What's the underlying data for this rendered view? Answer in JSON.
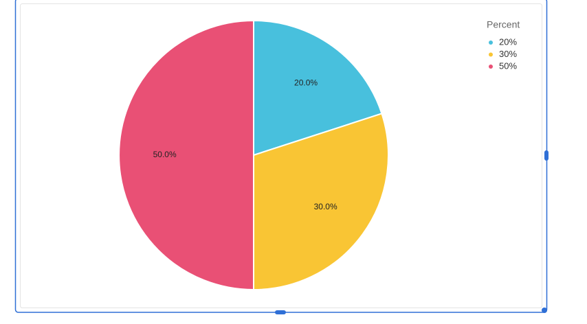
{
  "chart_data": {
    "type": "pie",
    "legend_title": "Percent",
    "categories": [
      "20%",
      "30%",
      "50%"
    ],
    "values": [
      20,
      30,
      50
    ],
    "value_labels": [
      "20.0%",
      "30.0%",
      "50.0%"
    ],
    "colors": [
      "#48c0dd",
      "#f9c534",
      "#e95075"
    ],
    "legend": "top-right"
  }
}
